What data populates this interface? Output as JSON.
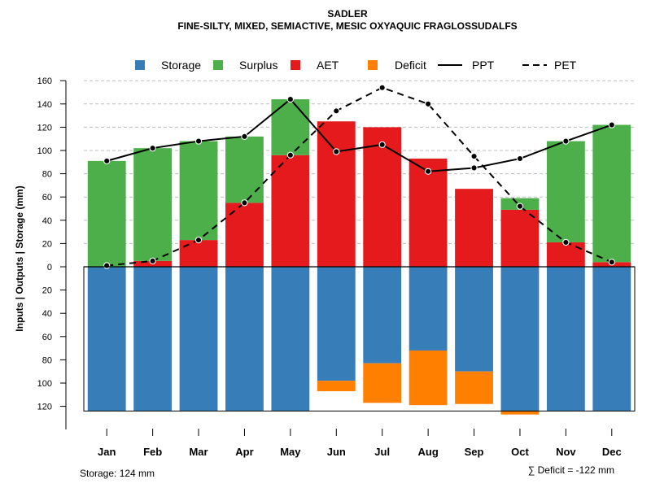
{
  "chart_data": {
    "type": "bar",
    "title": "SADLER",
    "subtitle": "FINE-SILTY, MIXED, SEMIACTIVE, MESIC OXYAQUIC FRAGLOSSUDALFS",
    "ylabel": "Inputs | Outputs | Storage    (mm)",
    "ylim": [
      -124,
      160
    ],
    "yticks": [
      160,
      140,
      120,
      100,
      80,
      60,
      40,
      20,
      0,
      -20,
      -40,
      -60,
      -80,
      -100,
      -120
    ],
    "ytick_labels": [
      "160",
      "140",
      "120",
      "100",
      "80",
      "60",
      "40",
      "20",
      "0",
      "20",
      "40",
      "60",
      "80",
      "100",
      "120"
    ],
    "categories": [
      "Jan",
      "Feb",
      "Mar",
      "Apr",
      "May",
      "Jun",
      "Jul",
      "Aug",
      "Sep",
      "Oct",
      "Nov",
      "Dec"
    ],
    "series": [
      {
        "name": "Storage",
        "color": "#377eb8",
        "values": [
          124,
          124,
          124,
          124,
          124,
          98,
          83,
          72,
          90,
          124,
          124,
          124
        ]
      },
      {
        "name": "Surplus",
        "color": "#4daf4a",
        "values": [
          91,
          97,
          85,
          57,
          48,
          0,
          0,
          0,
          0,
          10,
          87,
          118
        ]
      },
      {
        "name": "AET",
        "color": "#e41a1c",
        "values": [
          0,
          5,
          23,
          55,
          96,
          125,
          120,
          93,
          67,
          49,
          21,
          4
        ]
      },
      {
        "name": "Deficit",
        "color": "#ff7f00",
        "values": [
          0,
          0,
          0,
          0,
          0,
          9,
          34,
          47,
          28,
          3,
          0,
          0
        ]
      },
      {
        "name": "PPT",
        "type": "line",
        "style": "solid",
        "color": "#000000",
        "values": [
          91,
          102,
          108,
          112,
          144,
          99,
          105,
          82,
          85,
          93,
          108,
          122
        ]
      },
      {
        "name": "PET",
        "type": "line",
        "style": "dashed",
        "color": "#000000",
        "values": [
          1,
          5,
          23,
          55,
          96,
          134,
          154,
          140,
          95,
          52,
          21,
          4
        ]
      }
    ],
    "legend_labels": [
      "Storage",
      "Surplus",
      "AET",
      "Deficit",
      "PPT",
      "PET"
    ],
    "legend_position": "top",
    "grid": true,
    "storage_note": "Storage: 124 mm",
    "deficit_note": "∑ Deficit = -122 mm"
  }
}
